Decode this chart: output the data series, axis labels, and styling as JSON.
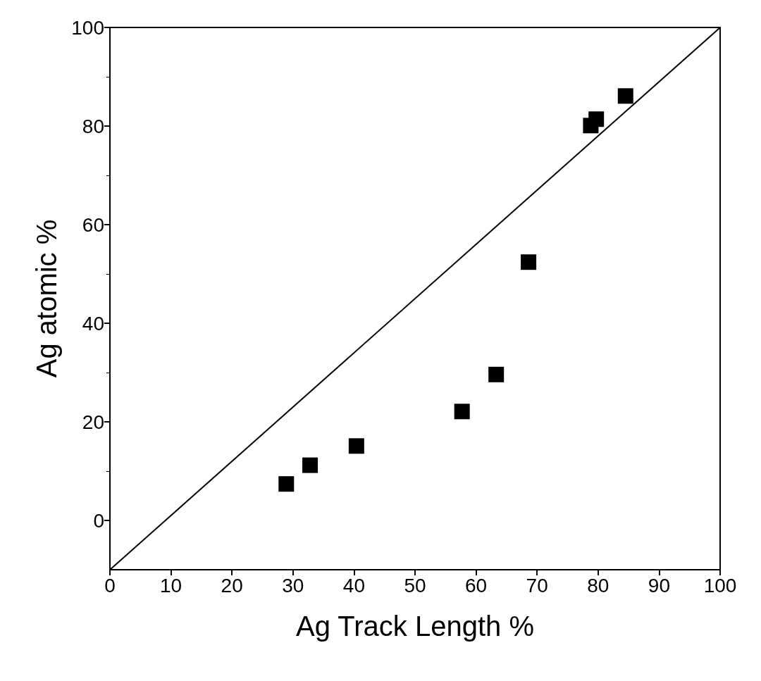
{
  "chart_data": {
    "type": "scatter",
    "xlabel": "Ag Track Length %",
    "ylabel": "Ag atomic %",
    "xlim": [
      0,
      100
    ],
    "ylim": [
      -10,
      100
    ],
    "xticks": [
      0,
      10,
      20,
      30,
      40,
      50,
      60,
      70,
      80,
      90,
      100
    ],
    "yticks": [
      0,
      20,
      40,
      60,
      80,
      100
    ],
    "marker": "square",
    "series": [
      {
        "color": "#000000",
        "x": [
          28.9,
          32.8,
          40.4,
          57.7,
          63.3,
          68.6,
          78.8,
          79.7,
          84.5
        ],
        "values": [
          7.4,
          11.2,
          15.1,
          22.1,
          29.6,
          52.4,
          80.1,
          81.4,
          86.1
        ]
      },
      {
        "type": "line",
        "color": "#000000",
        "marker": "none",
        "x": [
          0,
          100
        ],
        "values": [
          -10,
          100
        ]
      }
    ]
  }
}
